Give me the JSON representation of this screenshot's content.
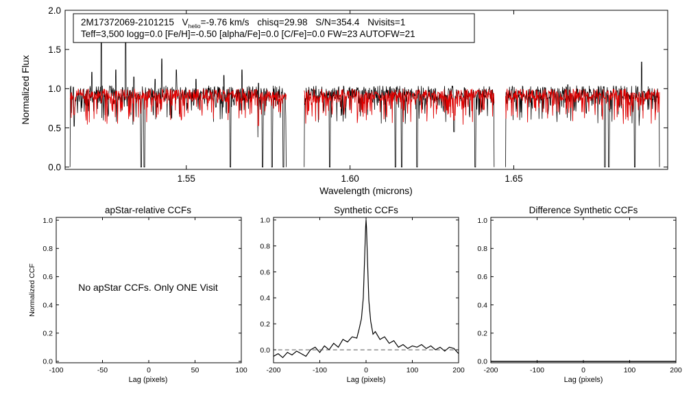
{
  "colors": {
    "observed": "#000000",
    "model": "#e00000",
    "axes": "#000000",
    "zero_line": "#555555"
  },
  "header": {
    "star_id": "2M17372069-2101215",
    "v_label": "V",
    "v_sub": "helio",
    "v_value": "=-9.76 km/s",
    "chisq": "chisq=29.98",
    "snr": "S/N=354.4",
    "nvisits": "Nvisits=1",
    "params_line": "Teff=3,500 logg=0.0 [Fe/H]=-0.50 [alpha/Fe]=0.0 [C/Fe]=0.0 FW=23 AUTOFW=21"
  },
  "chart_data": [
    {
      "id": "spectrum",
      "type": "line",
      "title": "",
      "xlabel": "Wavelength (microns)",
      "ylabel": "Normalized Flux",
      "xlim": [
        1.513,
        1.697
      ],
      "ylim": [
        -0.03,
        2.0
      ],
      "xticks": [
        1.55,
        1.6,
        1.65
      ],
      "xtick_labels": [
        "1.55",
        "1.60",
        "1.65"
      ],
      "yticks": [
        0.0,
        0.5,
        1.0,
        1.5,
        2.0
      ],
      "ytick_labels": [
        "0.0",
        "0.5",
        "1.0",
        "1.5",
        "2.0"
      ],
      "chips": [
        [
          1.5145,
          1.5805
        ],
        [
          1.586,
          1.644
        ],
        [
          1.6475,
          1.6945
        ]
      ],
      "series": [
        {
          "name": "observed",
          "color": "#000000",
          "sampled": true,
          "continuum": 0.95,
          "scatter": 0.09
        },
        {
          "name": "synthetic",
          "color": "#e00000",
          "sampled": true,
          "continuum": 0.93,
          "scatter": 0.07
        }
      ],
      "emission_spikes": [
        [
          1.5155,
          1.02
        ],
        [
          1.5212,
          1.21
        ],
        [
          1.524,
          1.75
        ],
        [
          1.5285,
          1.24
        ],
        [
          1.5315,
          1.88
        ],
        [
          1.534,
          1.15
        ],
        [
          1.5405,
          1.12
        ],
        [
          1.5425,
          1.38
        ],
        [
          1.547,
          1.24
        ],
        [
          1.553,
          1.12
        ],
        [
          1.5615,
          1.17
        ],
        [
          1.567,
          1.24
        ],
        [
          1.572,
          1.07
        ],
        [
          1.585,
          1.1
        ],
        [
          1.6665,
          1.05
        ],
        [
          1.689,
          1.34
        ]
      ],
      "absorption_dips": [
        [
          1.5157,
          0.52
        ],
        [
          1.5362,
          0.0
        ],
        [
          1.5372,
          0.0
        ],
        [
          1.5635,
          0.0
        ],
        [
          1.572,
          0.38
        ],
        [
          1.5733,
          0.0
        ],
        [
          1.5762,
          0.0
        ],
        [
          1.5797,
          0.0
        ],
        [
          1.581,
          0.0
        ],
        [
          1.5938,
          0.0
        ],
        [
          1.6139,
          0.0
        ],
        [
          1.6158,
          0.0
        ],
        [
          1.6205,
          0.0
        ],
        [
          1.6318,
          0.45
        ],
        [
          1.6382,
          0.0
        ],
        [
          1.6443,
          0.5
        ],
        [
          1.6778,
          0.0
        ],
        [
          1.679,
          0.0
        ],
        [
          1.687,
          0.0
        ]
      ]
    },
    {
      "id": "apstar",
      "type": "line",
      "title": "apStar-relative CCFs",
      "xlabel": "Lag (pixels)",
      "ylabel": "Normalized CCF",
      "xlim": [
        -100,
        100
      ],
      "ylim": [
        -0.01,
        1.02
      ],
      "xticks": [
        -100,
        -50,
        0,
        50,
        100
      ],
      "xtick_labels": [
        "-100",
        "-50",
        "0",
        "50",
        "100"
      ],
      "yticks": [
        0.0,
        0.2,
        0.4,
        0.6,
        0.8,
        1.0
      ],
      "ytick_labels": [
        "0.0",
        "0.2",
        "0.4",
        "0.6",
        "0.8",
        "1.0"
      ],
      "message": "No apStar CCFs.  Only ONE Visit",
      "series": []
    },
    {
      "id": "synthetic",
      "type": "line",
      "title": "Synthetic CCFs",
      "xlabel": "Lag (pixels)",
      "ylabel": "",
      "xlim": [
        -200,
        200
      ],
      "ylim": [
        -0.1,
        1.02
      ],
      "xticks": [
        -200,
        -100,
        0,
        100,
        200
      ],
      "xtick_labels": [
        "-200",
        "-100",
        "0",
        "100",
        "200"
      ],
      "yticks": [
        0.0,
        0.2,
        0.4,
        0.6,
        0.8,
        1.0
      ],
      "ytick_labels": [
        "0.0",
        "0.2",
        "0.4",
        "0.6",
        "0.8",
        "1.0"
      ],
      "series": [
        {
          "name": "ccf",
          "color": "#000000",
          "x": [
            -200,
            -190,
            -180,
            -170,
            -160,
            -150,
            -140,
            -130,
            -120,
            -110,
            -100,
            -90,
            -80,
            -70,
            -60,
            -50,
            -40,
            -30,
            -20,
            -15,
            -10,
            -6,
            -3,
            -1,
            0,
            1,
            3,
            6,
            10,
            15,
            20,
            30,
            40,
            50,
            60,
            70,
            80,
            90,
            100,
            110,
            120,
            130,
            140,
            150,
            160,
            170,
            180,
            190,
            200
          ],
          "y": [
            -0.05,
            -0.03,
            -0.06,
            -0.02,
            -0.04,
            -0.01,
            -0.03,
            -0.05,
            0.0,
            0.02,
            -0.02,
            0.03,
            0.0,
            0.05,
            0.02,
            0.08,
            0.06,
            0.1,
            0.09,
            0.16,
            0.24,
            0.4,
            0.72,
            0.94,
            1.0,
            0.94,
            0.7,
            0.38,
            0.22,
            0.12,
            0.14,
            0.08,
            0.1,
            0.05,
            0.07,
            0.02,
            0.04,
            0.01,
            0.03,
            0.02,
            0.04,
            0.01,
            0.03,
            0.0,
            0.02,
            -0.01,
            0.02,
            0.01,
            -0.03
          ]
        },
        {
          "name": "zero",
          "color": "#555555",
          "dashed": true,
          "x": [
            -190,
            190
          ],
          "y": [
            0.0,
            0.0
          ]
        }
      ]
    },
    {
      "id": "difference",
      "type": "line",
      "title": "Difference Synthetic CCFs",
      "xlabel": "Lag (pixels)",
      "ylabel": "",
      "xlim": [
        -200,
        200
      ],
      "ylim": [
        -0.01,
        1.02
      ],
      "xticks": [
        -200,
        -100,
        0,
        100,
        200
      ],
      "xtick_labels": [
        "-200",
        "-100",
        "0",
        "100",
        "200"
      ],
      "yticks": [
        0.0,
        0.2,
        0.4,
        0.6,
        0.8,
        1.0
      ],
      "ytick_labels": [
        "0.0",
        "0.2",
        "0.4",
        "0.6",
        "0.8",
        "1.0"
      ],
      "series": [
        {
          "name": "difference",
          "color": "#000000",
          "x": [
            -200,
            200
          ],
          "y": [
            0.0,
            0.0
          ]
        }
      ]
    }
  ]
}
